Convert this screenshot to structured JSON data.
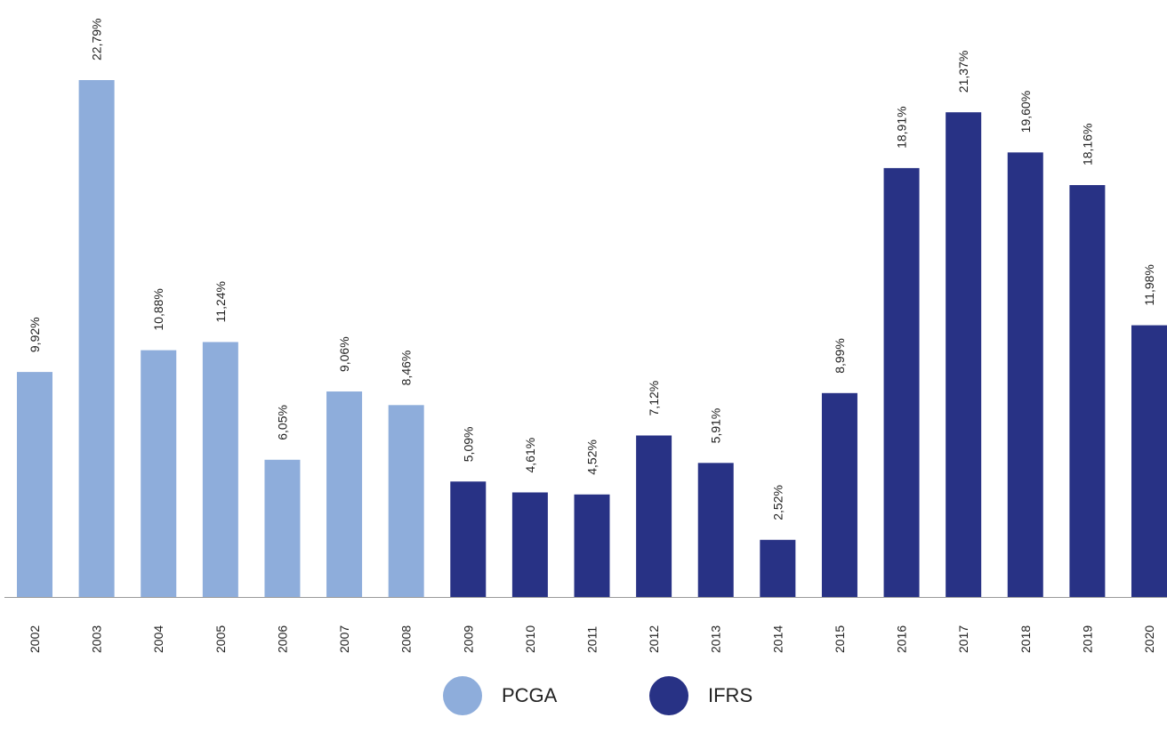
{
  "chart_data": {
    "type": "bar",
    "title": "",
    "xlabel": "",
    "ylabel": "",
    "ylim": [
      0,
      23.5
    ],
    "grid": false,
    "legend_placement": "bottom-center",
    "categories": [
      "2002",
      "2003",
      "2004",
      "2005",
      "2006",
      "2007",
      "2008",
      "2009",
      "2010",
      "2011",
      "2012",
      "2013",
      "2014",
      "2015",
      "2016",
      "2017",
      "2018",
      "2019",
      "2020"
    ],
    "values": [
      9.92,
      22.79,
      10.88,
      11.24,
      6.05,
      9.06,
      8.46,
      5.09,
      4.61,
      4.52,
      7.12,
      5.91,
      2.52,
      8.99,
      18.91,
      21.37,
      19.6,
      18.16,
      11.98
    ],
    "value_labels": [
      "9,92%",
      "22,79%",
      "10,88%",
      "11,24%",
      "6,05%",
      "9,06%",
      "8,46%",
      "5,09%",
      "4,61%",
      "4,52%",
      "7,12%",
      "5,91%",
      "2,52%",
      "8,99%",
      "18,91%",
      "21,37%",
      "19,60%",
      "18,16%",
      "11,98%"
    ],
    "bar_series": [
      "PCGA",
      "PCGA",
      "PCGA",
      "PCGA",
      "PCGA",
      "PCGA",
      "PCGA",
      "IFRS",
      "IFRS",
      "IFRS",
      "IFRS",
      "IFRS",
      "IFRS",
      "IFRS",
      "IFRS",
      "IFRS",
      "IFRS",
      "IFRS",
      "IFRS"
    ],
    "series": [
      {
        "name": "PCGA",
        "color": "#8eaddb"
      },
      {
        "name": "IFRS",
        "color": "#283285"
      }
    ]
  },
  "legend": {
    "items": [
      {
        "label": "PCGA",
        "color": "#8eaddb"
      },
      {
        "label": "IFRS",
        "color": "#283285"
      }
    ]
  },
  "colors": {
    "axis": "#9a9a9a"
  }
}
